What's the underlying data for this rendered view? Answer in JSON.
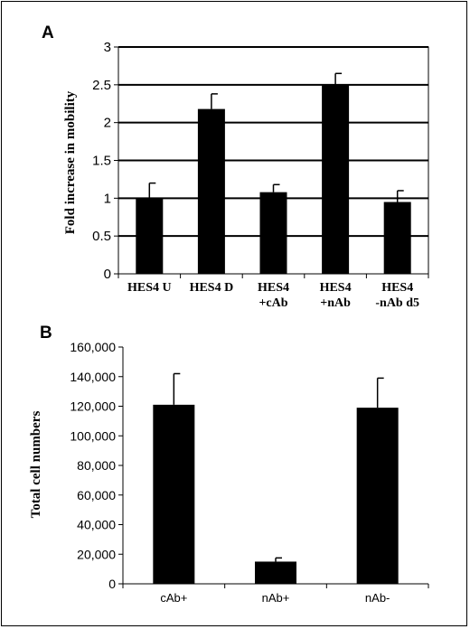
{
  "chart_data": [
    {
      "type": "bar",
      "panel_label": "A",
      "ylabel": "Fold increase in mobility",
      "xlabel": "",
      "ylim": [
        0,
        3
      ],
      "yticks": [
        "0",
        "0.5",
        "1",
        "1.5",
        "2",
        "2.5",
        "3"
      ],
      "grid": true,
      "categories": [
        [
          "HES4 U"
        ],
        [
          "HES4 D"
        ],
        [
          "HES4",
          "+cAb"
        ],
        [
          "HES4",
          "+nAb"
        ],
        [
          "HES4",
          "-nAb d5"
        ]
      ],
      "values": [
        1.0,
        2.18,
        1.08,
        2.5,
        0.95
      ],
      "errors": [
        0.2,
        0.2,
        0.1,
        0.15,
        0.15
      ],
      "bar_color": "#000000"
    },
    {
      "type": "bar",
      "panel_label": "B",
      "ylabel": "Total cell numbers",
      "xlabel": "",
      "ylim": [
        0,
        160000
      ],
      "yticks": [
        "0",
        "20,000",
        "40,000",
        "60,000",
        "80,000",
        "100,000",
        "120,000",
        "140,000",
        "160,000"
      ],
      "grid": false,
      "categories": [
        [
          "cAb+"
        ],
        [
          "nAb+"
        ],
        [
          "nAb-"
        ]
      ],
      "values": [
        121000,
        15000,
        119000
      ],
      "errors": [
        21000,
        2500,
        20000
      ],
      "bar_color": "#000000"
    }
  ]
}
